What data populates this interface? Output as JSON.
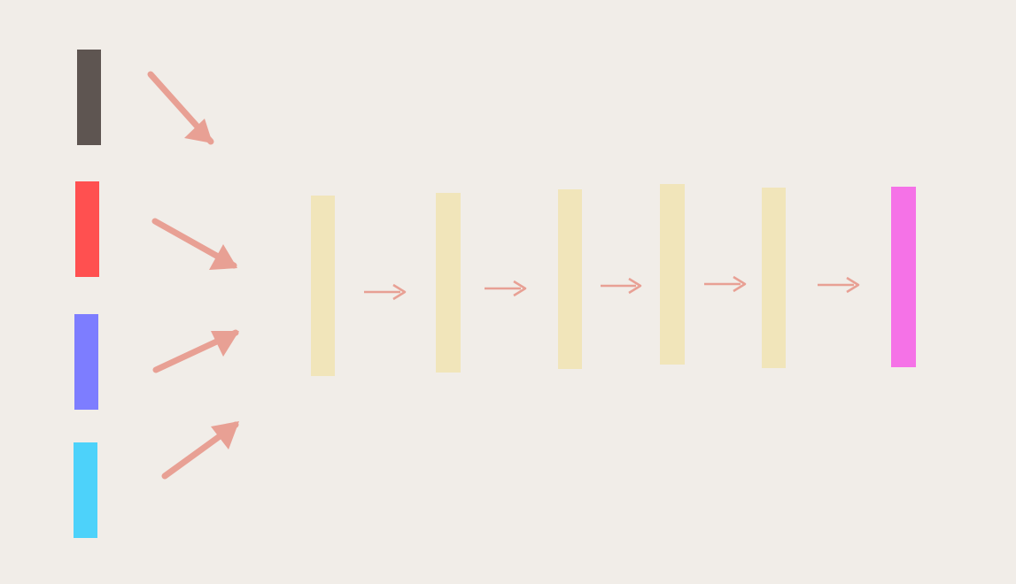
{
  "colors": {
    "background": "#F1EDE8",
    "arrow": "#E8A094",
    "hidden_layer": "#F1E5BA"
  },
  "diagram": {
    "inputs": [
      {
        "id": "input-1",
        "color": "#5E5551"
      },
      {
        "id": "input-2",
        "color": "#FF5050"
      },
      {
        "id": "input-3",
        "color": "#7D7DFF"
      },
      {
        "id": "input-4",
        "color": "#4DD2FA"
      }
    ],
    "hidden_layers": [
      {
        "id": "hidden-1"
      },
      {
        "id": "hidden-2"
      },
      {
        "id": "hidden-3"
      },
      {
        "id": "hidden-4"
      },
      {
        "id": "hidden-5"
      }
    ],
    "output": {
      "id": "output",
      "color": "#F572E7"
    }
  }
}
